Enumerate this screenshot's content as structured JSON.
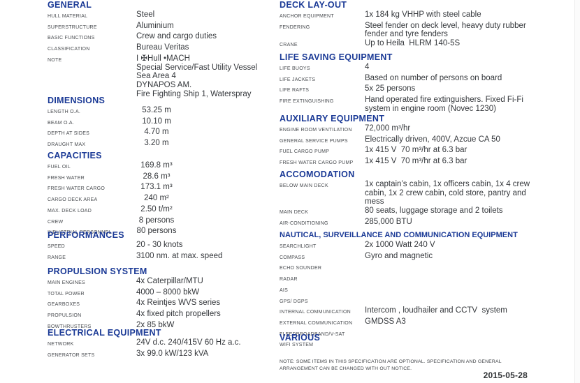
{
  "document": {
    "date": "2015-05-28",
    "footnote_lines": [
      "NOTE: SOME ITEMS IN THIS SPECIFICATION ARE OPTIONAL. SPECIFICATION AND GENERAL",
      "ARRANGEMENT CAN BE CHANGED WITH OUT NOTICE."
    ]
  },
  "colors": {
    "heading_blue": "#1b3a96",
    "label_gray": "#494c50",
    "value_dark": "#35383c"
  },
  "columns": {
    "left": [
      {
        "title": "GENERAL",
        "rows": [
          {
            "label": "HULL MATERIAL",
            "lines": [
              "Steel"
            ]
          },
          {
            "label": "SUPERSTRUCTURE",
            "lines": [
              "Aluminium"
            ]
          },
          {
            "label": "BASIC FUNCTIONS",
            "lines": [
              "Crew and cargo duties"
            ]
          },
          {
            "label": "CLASSIFICATION",
            "lines": [
              "Bureau Veritas"
            ]
          },
          {
            "label": "NOTE",
            "lines": [
              "I ✠Hull •MACH",
              "Special Service/Fast Utility Vessel",
              "Sea Area 4",
              "DYNAPOS AM.",
              "Fire Fighting Ship 1, Waterspray"
            ]
          }
        ]
      },
      {
        "title": "DIMENSIONS",
        "rows": [
          {
            "label": "LENGTH O.A.",
            "lines": [
              "53.25 m"
            ]
          },
          {
            "label": "BEAM O.A.",
            "lines": [
              "10.10 m"
            ]
          },
          {
            "label": "DEPTH AT SIDES",
            "lines": [
              "4.70 m"
            ]
          },
          {
            "label": "DRAUGHT MAX",
            "lines": [
              "3.20 m"
            ]
          }
        ]
      },
      {
        "title": "CAPACITIES",
        "rows": [
          {
            "label": "FUEL OIL",
            "lines": [
              "169.8 m³"
            ]
          },
          {
            "label": "FRESH WATER",
            "lines": [
              "28.6 m³"
            ]
          },
          {
            "label": "FRESH WATER CARGO",
            "lines": [
              "173.1 m³"
            ]
          },
          {
            "label": "CARGO DECK AREA",
            "lines": [
              "240 m²"
            ]
          },
          {
            "label": "MAX. DECK LOAD",
            "lines": [
              "2.50 t/m²"
            ]
          },
          {
            "label": "CREW",
            "lines": [
              "8 persons"
            ]
          },
          {
            "label": "INDUSTRIAL PERSONNEL",
            "lines": [
              "80 persons"
            ]
          }
        ]
      },
      {
        "title": "PERFORMANCES",
        "rows": [
          {
            "label": "SPEED",
            "lines": [
              "20 - 30 knots"
            ]
          },
          {
            "label": "RANGE",
            "lines": [
              "3100 nm. at max. speed"
            ]
          }
        ]
      },
      {
        "title": "PROPULSION SYSTEM",
        "rows": [
          {
            "label": "MAIN ENGINES",
            "lines": [
              "4x Caterpillar/MTU"
            ]
          },
          {
            "label": "TOTAL POWER",
            "lines": [
              "4000 – 8000 bkW"
            ]
          },
          {
            "label": "GEARBOXES",
            "lines": [
              "4x Reintjes WVS series"
            ]
          },
          {
            "label": "PROPULSION",
            "lines": [
              "4x fixed pitch propellers"
            ]
          },
          {
            "label": "BOWTHRUSTERS",
            "lines": [
              "2x 85 bkW"
            ]
          }
        ]
      },
      {
        "title": "ELECTRICAL EQUIPMENT",
        "rows": [
          {
            "label": "NETWORK",
            "lines": [
              "24V d.c. 240/415V 60 Hz a.c."
            ]
          },
          {
            "label": "GENERATOR SETS",
            "lines": [
              "3x 99.0 kW/123 kVA"
            ]
          }
        ]
      }
    ],
    "right": [
      {
        "title": "DECK LAY-OUT",
        "rows": [
          {
            "label": "ANCHOR EQUIPMENT",
            "lines": [
              "1x 184 kg VHHP with steel cable"
            ]
          },
          {
            "label": "FENDERING",
            "lines": [
              "Steel fender on deck level, heavy duty rubber",
              "fender and tyre fenders"
            ]
          },
          {
            "label": "CRANE",
            "lines": [
              "Up to Heila  HLRM 140-5S"
            ]
          }
        ]
      },
      {
        "title": "LIFE SAVING EQUIPMENT",
        "rows": [
          {
            "label": "LIFE BUOYS",
            "lines": [
              "4"
            ]
          },
          {
            "label": "LIFE JACKETS",
            "lines": [
              "Based on number of persons on board"
            ]
          },
          {
            "label": "LIFE RAFTS",
            "lines": [
              "5x 25 persons"
            ]
          },
          {
            "label": "FIRE EXTINGUISHING",
            "lines": [
              "Hand operated fire extinguishers. Fixed Fi-Fi",
              "system in engine room (Novec 1230)"
            ]
          }
        ]
      },
      {
        "title": "AUXILIARY EQUIPMENT",
        "rows": [
          {
            "label": "ENGINE ROOM VENTILATION",
            "lines": [
              "72,000 m³/hr"
            ]
          },
          {
            "label": "GENERAL SERVICE PUMPS",
            "lines": [
              "Electrically driven, 400V, Azcue CA 50"
            ]
          },
          {
            "label": "FUEL CARGO PUMP",
            "lines": [
              "1x 415 V  70 m³/hr at 6.3 bar"
            ]
          },
          {
            "label": "FRESH WATER CARGO PUMP",
            "lines": [
              "1x 415 V  70 m³/hr at 6.3 bar"
            ]
          }
        ]
      },
      {
        "title": "ACCOMODATION",
        "rows": [
          {
            "label": "BELOW MAIN DECK",
            "lines": [
              "1x captain’s cabin, 1x officers cabin, 1x 4 crew",
              "cabin, 1x 2 crew cabin, cold store, pantry and",
              "mess"
            ]
          },
          {
            "label": "MAIN DECK",
            "lines": [
              "80 seats, luggage storage and 2 toilets"
            ]
          },
          {
            "label": "AIR-CONDITIONING",
            "lines": [
              "285,000 BTU"
            ]
          }
        ]
      },
      {
        "title": "NAUTICAL, SURVEILLANCE AND COMMUNICATION EQUIPMENT",
        "rows": [
          {
            "label": "SEARCHLIGHT",
            "lines": [
              "2x 1000 Watt 240 V"
            ]
          },
          {
            "label": "COMPASS",
            "lines": [
              "Gyro and magnetic"
            ]
          },
          {
            "label": "ECHO SOUNDER",
            "lines": [
              ""
            ]
          },
          {
            "label": "RADAR",
            "lines": [
              ""
            ]
          },
          {
            "label": "AIS",
            "lines": [
              ""
            ]
          },
          {
            "label": "GPS/ DGPS",
            "lines": [
              ""
            ]
          },
          {
            "label": "INTERNAL COMMUNICATION",
            "lines": [
              "Intercom , loudhailer and CCTV  system"
            ]
          },
          {
            "label": "EXTERNAL COMMUNICATION",
            "lines": [
              "GMDSS A3"
            ]
          },
          {
            "label": "FLEEDBROADBAND/V-SAT",
            "lines": [
              ""
            ]
          },
          {
            "label": "WIFI SYSTEM",
            "lines": [
              ""
            ]
          }
        ]
      },
      {
        "title": "VARIOUS",
        "rows": []
      }
    ]
  }
}
